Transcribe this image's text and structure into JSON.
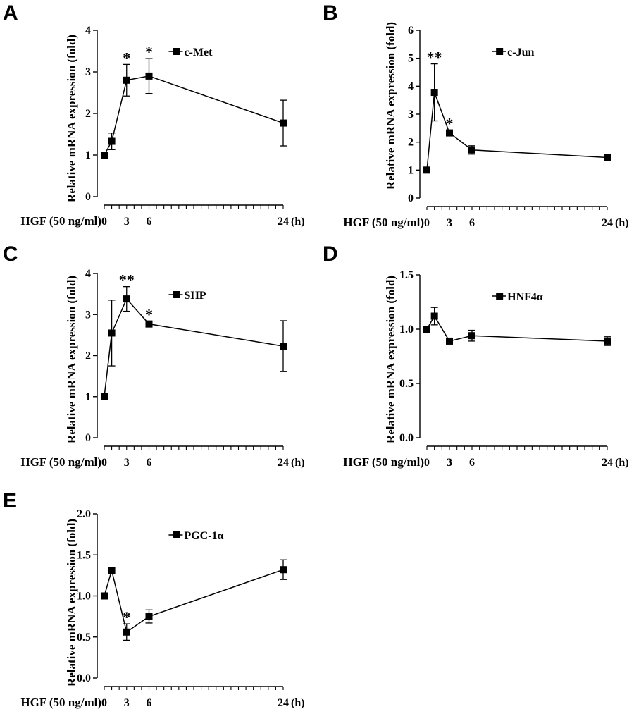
{
  "chart_data": [
    {
      "panel": "A",
      "type": "line",
      "ylabel": "Relative mRNA expression (fold)",
      "xlabel_prefix": "HGF (50 ng/ml)",
      "x_unit": "(h)",
      "x_ticks": [
        "0",
        "3",
        "6",
        "24"
      ],
      "ylim": [
        0,
        4
      ],
      "y_ticks": [
        "0",
        "1",
        "2",
        "3",
        "4"
      ],
      "series": [
        {
          "name": "c-Met",
          "x": [
            0,
            1,
            3,
            6,
            24
          ],
          "y": [
            1.0,
            1.33,
            2.8,
            2.9,
            1.77
          ],
          "err": [
            0.0,
            0.2,
            0.38,
            0.42,
            0.55
          ]
        }
      ],
      "annotations": [
        {
          "x": 3,
          "text": "*"
        },
        {
          "x": 6,
          "text": "*"
        }
      ]
    },
    {
      "panel": "B",
      "type": "line",
      "ylabel": "Relative mRNA expression (fold)",
      "xlabel_prefix": "HGF (50 ng/ml)",
      "x_unit": "(h)",
      "x_ticks": [
        "0",
        "3",
        "6",
        "24"
      ],
      "ylim": [
        0,
        6
      ],
      "y_ticks": [
        "0",
        "1",
        "2",
        "3",
        "4",
        "5",
        "6"
      ],
      "series": [
        {
          "name": "c-Jun",
          "x": [
            0,
            1,
            3,
            6,
            24
          ],
          "y": [
            1.0,
            3.78,
            2.33,
            1.72,
            1.45
          ],
          "err": [
            0.0,
            1.02,
            0.1,
            0.15,
            0.05
          ]
        }
      ],
      "annotations": [
        {
          "x": 1,
          "text": "**"
        },
        {
          "x": 3,
          "text": "*"
        }
      ]
    },
    {
      "panel": "C",
      "type": "line",
      "ylabel": "Relative mRNA expression (fold)",
      "xlabel_prefix": "HGF (50 ng/ml)",
      "x_unit": "(h)",
      "x_ticks": [
        "0",
        "3",
        "6",
        "24"
      ],
      "ylim": [
        0,
        4
      ],
      "y_ticks": [
        "0",
        "1",
        "2",
        "3",
        "4"
      ],
      "series": [
        {
          "name": "SHP",
          "x": [
            0,
            1,
            3,
            6,
            24
          ],
          "y": [
            1.0,
            2.55,
            3.38,
            2.77,
            2.23
          ],
          "err": [
            0.0,
            0.8,
            0.3,
            0.07,
            0.62
          ]
        }
      ],
      "annotations": [
        {
          "x": 3,
          "text": "**"
        },
        {
          "x": 6,
          "text": "*"
        }
      ]
    },
    {
      "panel": "D",
      "type": "line",
      "ylabel": "Relative mRNA expression (fold)",
      "xlabel_prefix": "HGF (50 ng/ml)",
      "x_unit": "(h)",
      "x_ticks": [
        "0",
        "3",
        "6",
        "24"
      ],
      "ylim": [
        0,
        1.5
      ],
      "y_ticks": [
        "0.0",
        "0.5",
        "1.0",
        "1.5"
      ],
      "series": [
        {
          "name": "HNF4α",
          "x": [
            0,
            1,
            3,
            6,
            24
          ],
          "y": [
            1.0,
            1.12,
            0.89,
            0.94,
            0.89
          ],
          "err": [
            0.0,
            0.08,
            0.02,
            0.05,
            0.04
          ]
        }
      ],
      "annotations": []
    },
    {
      "panel": "E",
      "type": "line",
      "ylabel": "Relative mRNA expression (fold)",
      "xlabel_prefix": "HGF (50 ng/ml)",
      "x_unit": "(h)",
      "x_ticks": [
        "0",
        "3",
        "6",
        "24"
      ],
      "ylim": [
        0,
        2
      ],
      "y_ticks": [
        "0.0",
        "0.5",
        "1.0",
        "1.5",
        "2.0"
      ],
      "series": [
        {
          "name": "PGC-1α",
          "x": [
            0,
            1,
            3,
            6,
            24
          ],
          "y": [
            1.0,
            1.31,
            0.56,
            0.75,
            1.32
          ],
          "err": [
            0.0,
            0.0,
            0.1,
            0.08,
            0.12
          ]
        }
      ],
      "annotations": [
        {
          "x": 3,
          "text": "*"
        }
      ]
    }
  ],
  "colors": {
    "ink": "#000000",
    "background": "#ffffff"
  }
}
